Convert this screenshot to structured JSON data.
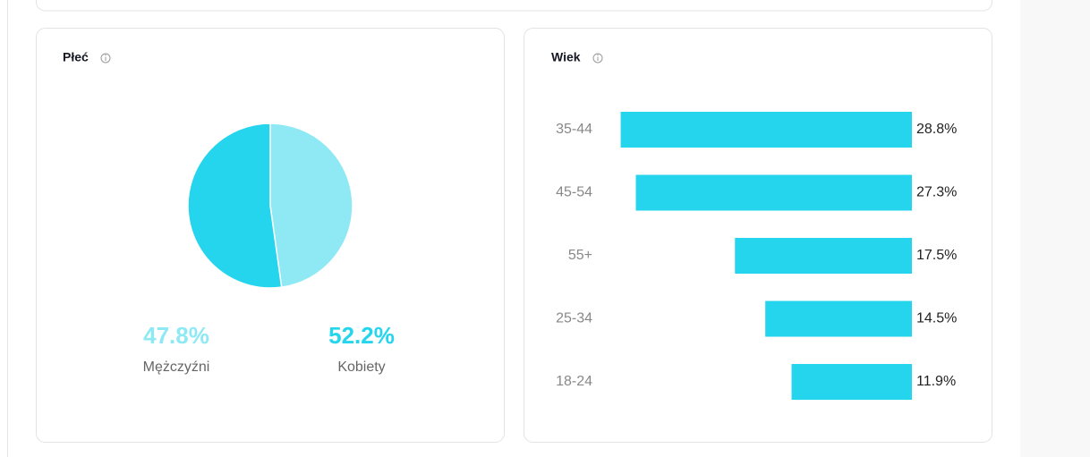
{
  "chart_data": [
    {
      "type": "pie",
      "title": "Płeć",
      "categories": [
        "Mężczyźni",
        "Kobiety"
      ],
      "values": [
        47.8,
        52.2
      ],
      "value_labels": [
        "47.8%",
        "52.2%"
      ],
      "colors": [
        "#8ee9f5",
        "#25d5ed"
      ]
    },
    {
      "type": "bar",
      "title": "Wiek",
      "orientation": "horizontal",
      "categories": [
        "35-44",
        "45-54",
        "55+",
        "25-34",
        "18-24"
      ],
      "values": [
        28.8,
        27.3,
        17.5,
        14.5,
        11.9
      ],
      "value_labels": [
        "28.8%",
        "27.3%",
        "17.5%",
        "14.5%",
        "11.9%"
      ],
      "color": "#25d5ed"
    }
  ]
}
